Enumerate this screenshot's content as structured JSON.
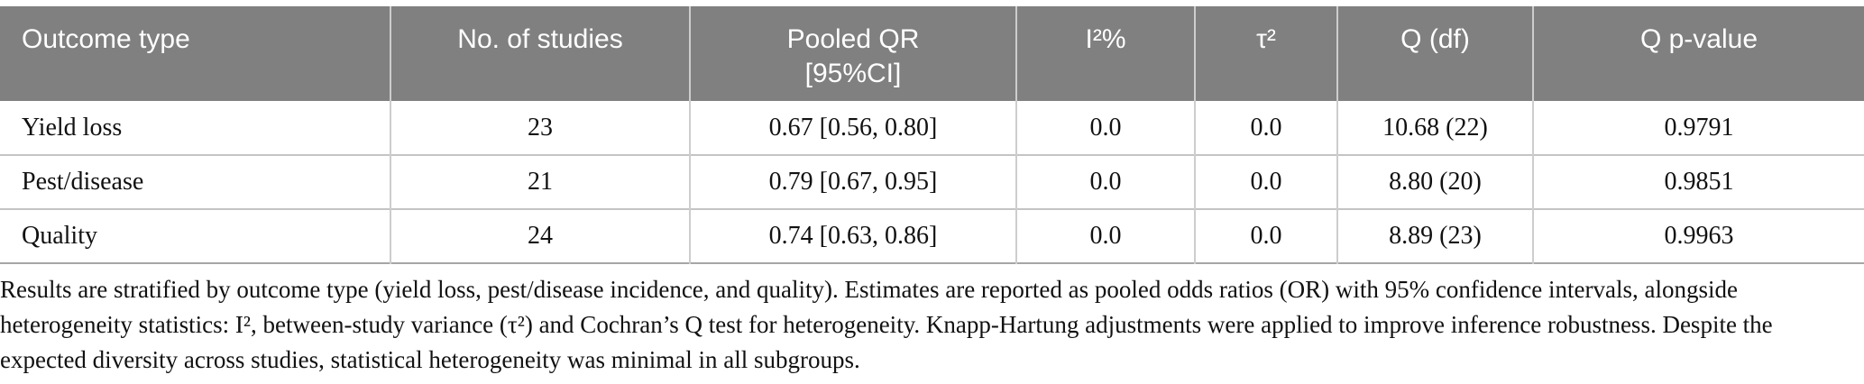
{
  "colors": {
    "header_bg": "#808080",
    "header_text": "#ffffff",
    "column_divider": "#cdcdcd",
    "row_divider": "#c4c4c4",
    "table_bottom_border": "#a6a6a6",
    "body_text": "#111111",
    "page_bg": "#ffffff"
  },
  "table": {
    "headers": [
      {
        "label": "Outcome type"
      },
      {
        "label": "No. of studies"
      },
      {
        "label": "Pooled QR\n[95%CI]"
      },
      {
        "label": "I²%"
      },
      {
        "label": "τ²"
      },
      {
        "label": "Q (df)"
      },
      {
        "label": "Q p-value"
      }
    ],
    "rows": [
      {
        "outcome_type": "Yield loss",
        "no_of_studies": "23",
        "pooled_qr": "0.67 [0.56, 0.80]",
        "i2_percent": "0.0",
        "tau2": "0.0",
        "q_df": "10.68 (22)",
        "q_p_value": "0.9791"
      },
      {
        "outcome_type": "Pest/disease",
        "no_of_studies": "21",
        "pooled_qr": "0.79 [0.67, 0.95]",
        "i2_percent": "0.0",
        "tau2": "0.0",
        "q_df": "8.80 (20)",
        "q_p_value": "0.9851"
      },
      {
        "outcome_type": "Quality",
        "no_of_studies": "24",
        "pooled_qr": "0.74 [0.63, 0.86]",
        "i2_percent": "0.0",
        "tau2": "0.0",
        "q_df": "8.89 (23)",
        "q_p_value": "0.9963"
      }
    ]
  },
  "footnote": "Results are stratified by outcome type (yield loss, pest/disease incidence, and quality). Estimates are reported as pooled odds ratios (OR) with 95% confidence intervals, alongside heterogeneity statistics: I², between-study variance (τ²) and Cochran’s Q test for heterogeneity. Knapp-Hartung adjustments were applied to improve inference robustness. Despite the expected diversity across studies, statistical heterogeneity was minimal in all subgroups."
}
